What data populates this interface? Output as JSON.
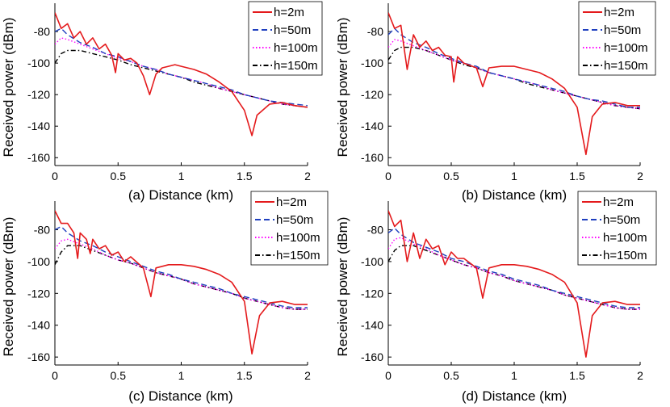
{
  "chart_data": [
    {
      "type": "line",
      "xlabel": "(a) Distance (km)",
      "ylabel": "Received power (dBm)",
      "xlim": [
        0,
        2
      ],
      "ylim": [
        -165,
        -62
      ],
      "xticks": [
        "0",
        "0.5",
        "1",
        "1.5",
        "2"
      ],
      "yticks": [
        "-80",
        "-100",
        "-120",
        "-140",
        "-160"
      ],
      "grid": false,
      "legend_position": "top-right",
      "series": [
        {
          "name": "h=2m",
          "color": "#e41a1c",
          "style": "solid",
          "x": [
            0,
            0.05,
            0.1,
            0.15,
            0.2,
            0.25,
            0.3,
            0.35,
            0.4,
            0.45,
            0.48,
            0.5,
            0.55,
            0.6,
            0.65,
            0.7,
            0.75,
            0.8,
            0.85,
            0.9,
            0.95,
            1.0,
            1.1,
            1.2,
            1.3,
            1.4,
            1.5,
            1.56,
            1.6,
            1.7,
            1.8,
            1.9,
            2.0
          ],
          "y": [
            -68,
            -78,
            -75,
            -84,
            -80,
            -88,
            -84,
            -91,
            -88,
            -95,
            -106,
            -94,
            -98,
            -97,
            -100,
            -108,
            -120,
            -107,
            -103,
            -102,
            -101,
            -102,
            -104,
            -107,
            -112,
            -118,
            -130,
            -146,
            -133,
            -126,
            -125,
            -127,
            -128
          ]
        },
        {
          "name": "h=50m",
          "color": "#1f3fbf",
          "style": "dashed",
          "x": [
            0,
            0.05,
            0.1,
            0.2,
            0.3,
            0.4,
            0.5,
            0.6,
            0.7,
            0.8,
            0.9,
            1.0,
            1.1,
            1.2,
            1.3,
            1.4,
            1.5,
            1.6,
            1.7,
            1.8,
            1.9,
            2.0
          ],
          "y": [
            -80,
            -78,
            -82,
            -87,
            -90,
            -94,
            -96,
            -99,
            -102,
            -104,
            -107,
            -109,
            -111,
            -113,
            -115,
            -117,
            -120,
            -122,
            -124,
            -125,
            -126,
            -127
          ]
        },
        {
          "name": "h=100m",
          "color": "#ff00ff",
          "style": "dotted",
          "x": [
            0,
            0.05,
            0.1,
            0.2,
            0.3,
            0.4,
            0.5,
            0.6,
            0.7,
            0.8,
            0.9,
            1.0,
            1.1,
            1.2,
            1.3,
            1.4,
            1.5,
            1.6,
            1.7,
            1.8,
            1.9,
            2.0
          ],
          "y": [
            -88,
            -84,
            -85,
            -88,
            -91,
            -94,
            -97,
            -99,
            -102,
            -104,
            -107,
            -109,
            -111,
            -113,
            -116,
            -118,
            -120,
            -122,
            -124,
            -126,
            -127,
            -128
          ]
        },
        {
          "name": "h=150m",
          "color": "#000000",
          "style": "dashdot",
          "x": [
            0,
            0.05,
            0.1,
            0.2,
            0.3,
            0.4,
            0.5,
            0.6,
            0.7,
            0.8,
            0.9,
            1.0,
            1.1,
            1.2,
            1.3,
            1.4,
            1.5,
            1.6,
            1.7,
            1.8,
            1.9,
            2.0
          ],
          "y": [
            -100,
            -94,
            -92,
            -92,
            -94,
            -96,
            -98,
            -101,
            -103,
            -105,
            -107,
            -109,
            -112,
            -114,
            -116,
            -118,
            -120,
            -122,
            -124,
            -126,
            -127,
            -128
          ]
        }
      ]
    },
    {
      "type": "line",
      "xlabel": "(b) Distance (km)",
      "ylabel": "Received power (dBm)",
      "xlim": [
        0,
        2
      ],
      "ylim": [
        -165,
        -62
      ],
      "xticks": [
        "0",
        "0.5",
        "1",
        "1.5",
        "2"
      ],
      "yticks": [
        "-80",
        "-100",
        "-120",
        "-140",
        "-160"
      ],
      "grid": false,
      "legend_position": "top-right",
      "series": [
        {
          "name": "h=2m",
          "color": "#e41a1c",
          "style": "solid",
          "x": [
            0,
            0.05,
            0.1,
            0.15,
            0.2,
            0.25,
            0.3,
            0.35,
            0.4,
            0.45,
            0.5,
            0.52,
            0.55,
            0.6,
            0.7,
            0.75,
            0.8,
            0.9,
            1.0,
            1.1,
            1.2,
            1.3,
            1.4,
            1.5,
            1.57,
            1.62,
            1.7,
            1.8,
            1.9,
            2.0
          ],
          "y": [
            -68,
            -78,
            -76,
            -104,
            -82,
            -90,
            -86,
            -92,
            -90,
            -95,
            -96,
            -112,
            -96,
            -100,
            -103,
            -115,
            -103,
            -102,
            -102,
            -104,
            -106,
            -110,
            -116,
            -128,
            -158,
            -134,
            -126,
            -125,
            -127,
            -127
          ]
        },
        {
          "name": "h=50m",
          "color": "#1f3fbf",
          "style": "dashed",
          "x": [
            0,
            0.05,
            0.1,
            0.2,
            0.3,
            0.4,
            0.5,
            0.6,
            0.7,
            0.8,
            0.9,
            1.0,
            1.1,
            1.2,
            1.3,
            1.4,
            1.5,
            1.6,
            1.7,
            1.8,
            1.9,
            2.0
          ],
          "y": [
            -82,
            -78,
            -82,
            -87,
            -90,
            -94,
            -97,
            -100,
            -102,
            -106,
            -108,
            -110,
            -112,
            -114,
            -116,
            -118,
            -121,
            -123,
            -124,
            -126,
            -128,
            -128
          ]
        },
        {
          "name": "h=100m",
          "color": "#ff00ff",
          "style": "dotted",
          "x": [
            0,
            0.05,
            0.1,
            0.2,
            0.3,
            0.4,
            0.5,
            0.6,
            0.7,
            0.8,
            0.9,
            1.0,
            1.1,
            1.2,
            1.3,
            1.4,
            1.5,
            1.6,
            1.7,
            1.8,
            1.9,
            2.0
          ],
          "y": [
            -90,
            -85,
            -86,
            -89,
            -92,
            -95,
            -98,
            -100,
            -103,
            -106,
            -108,
            -110,
            -112,
            -114,
            -117,
            -119,
            -121,
            -123,
            -125,
            -127,
            -128,
            -129
          ]
        },
        {
          "name": "h=150m",
          "color": "#000000",
          "style": "dashdot",
          "x": [
            0,
            0.05,
            0.1,
            0.2,
            0.3,
            0.4,
            0.5,
            0.6,
            0.7,
            0.8,
            0.9,
            1.0,
            1.1,
            1.2,
            1.3,
            1.4,
            1.5,
            1.6,
            1.7,
            1.8,
            1.9,
            2.0
          ],
          "y": [
            -98,
            -92,
            -90,
            -90,
            -92,
            -95,
            -98,
            -101,
            -103,
            -106,
            -108,
            -110,
            -113,
            -115,
            -117,
            -119,
            -121,
            -123,
            -125,
            -127,
            -128,
            -129
          ]
        }
      ]
    },
    {
      "type": "line",
      "xlabel": "(c) Distance (km)",
      "ylabel": "Received power (dBm)",
      "xlim": [
        0,
        2
      ],
      "ylim": [
        -165,
        -62
      ],
      "xticks": [
        "0",
        "0.5",
        "1",
        "1.5",
        "2"
      ],
      "yticks": [
        "-80",
        "-100",
        "-120",
        "-140",
        "-160"
      ],
      "grid": false,
      "legend_position": "top-right",
      "series": [
        {
          "name": "h=2m",
          "color": "#e41a1c",
          "style": "solid",
          "x": [
            0,
            0.05,
            0.1,
            0.15,
            0.18,
            0.2,
            0.25,
            0.28,
            0.3,
            0.35,
            0.4,
            0.45,
            0.5,
            0.55,
            0.6,
            0.7,
            0.76,
            0.8,
            0.9,
            1.0,
            1.1,
            1.2,
            1.3,
            1.4,
            1.5,
            1.56,
            1.62,
            1.7,
            1.8,
            1.9,
            2.0
          ],
          "y": [
            -68,
            -76,
            -76,
            -82,
            -98,
            -82,
            -86,
            -95,
            -86,
            -92,
            -90,
            -96,
            -94,
            -100,
            -97,
            -104,
            -122,
            -104,
            -102,
            -102,
            -103,
            -105,
            -108,
            -113,
            -125,
            -158,
            -134,
            -126,
            -125,
            -127,
            -127
          ]
        },
        {
          "name": "h=50m",
          "color": "#1f3fbf",
          "style": "dashed",
          "x": [
            0,
            0.05,
            0.1,
            0.2,
            0.3,
            0.4,
            0.5,
            0.6,
            0.7,
            0.8,
            0.9,
            1.0,
            1.1,
            1.2,
            1.3,
            1.4,
            1.5,
            1.6,
            1.7,
            1.8,
            1.9,
            2.0
          ],
          "y": [
            -80,
            -78,
            -82,
            -87,
            -90,
            -94,
            -97,
            -100,
            -103,
            -106,
            -108,
            -111,
            -113,
            -115,
            -117,
            -120,
            -122,
            -124,
            -126,
            -128,
            -129,
            -129
          ]
        },
        {
          "name": "h=100m",
          "color": "#ff00ff",
          "style": "dotted",
          "x": [
            0,
            0.05,
            0.1,
            0.2,
            0.3,
            0.4,
            0.5,
            0.6,
            0.7,
            0.8,
            0.9,
            1.0,
            1.1,
            1.2,
            1.3,
            1.4,
            1.5,
            1.6,
            1.7,
            1.8,
            1.9,
            2.0
          ],
          "y": [
            -92,
            -87,
            -86,
            -89,
            -92,
            -96,
            -99,
            -101,
            -104,
            -107,
            -109,
            -111,
            -114,
            -116,
            -118,
            -120,
            -123,
            -125,
            -127,
            -129,
            -130,
            -130
          ]
        },
        {
          "name": "h=150m",
          "color": "#000000",
          "style": "dashdot",
          "x": [
            0,
            0.05,
            0.1,
            0.2,
            0.3,
            0.4,
            0.5,
            0.6,
            0.7,
            0.8,
            0.9,
            1.0,
            1.1,
            1.2,
            1.3,
            1.4,
            1.5,
            1.6,
            1.7,
            1.8,
            1.9,
            2.0
          ],
          "y": [
            -102,
            -94,
            -90,
            -90,
            -93,
            -96,
            -99,
            -101,
            -104,
            -107,
            -109,
            -111,
            -114,
            -116,
            -118,
            -120,
            -123,
            -125,
            -127,
            -129,
            -130,
            -130
          ]
        }
      ]
    },
    {
      "type": "line",
      "xlabel": "(d) Distance (km)",
      "ylabel": "Received power (dBm)",
      "xlim": [
        0,
        2
      ],
      "ylim": [
        -165,
        -62
      ],
      "xticks": [
        "0",
        "0.5",
        "1",
        "1.5",
        "2"
      ],
      "yticks": [
        "-80",
        "-100",
        "-120",
        "-140",
        "-160"
      ],
      "grid": false,
      "legend_position": "top-right",
      "series": [
        {
          "name": "h=2m",
          "color": "#e41a1c",
          "style": "solid",
          "x": [
            0,
            0.05,
            0.1,
            0.15,
            0.2,
            0.25,
            0.3,
            0.35,
            0.4,
            0.45,
            0.5,
            0.55,
            0.6,
            0.7,
            0.75,
            0.8,
            0.9,
            1.0,
            1.1,
            1.2,
            1.3,
            1.4,
            1.5,
            1.57,
            1.62,
            1.7,
            1.8,
            1.9,
            2.0
          ],
          "y": [
            -68,
            -78,
            -74,
            -100,
            -82,
            -98,
            -86,
            -92,
            -90,
            -102,
            -94,
            -98,
            -98,
            -104,
            -123,
            -104,
            -102,
            -102,
            -103,
            -105,
            -108,
            -113,
            -126,
            -160,
            -134,
            -126,
            -125,
            -127,
            -127
          ]
        },
        {
          "name": "h=50m",
          "color": "#1f3fbf",
          "style": "dashed",
          "x": [
            0,
            0.05,
            0.1,
            0.2,
            0.3,
            0.4,
            0.5,
            0.6,
            0.7,
            0.8,
            0.9,
            1.0,
            1.1,
            1.2,
            1.3,
            1.4,
            1.5,
            1.6,
            1.7,
            1.8,
            1.9,
            2.0
          ],
          "y": [
            -82,
            -79,
            -83,
            -88,
            -91,
            -94,
            -98,
            -100,
            -103,
            -106,
            -108,
            -111,
            -113,
            -115,
            -118,
            -120,
            -122,
            -124,
            -126,
            -128,
            -129,
            -129
          ]
        },
        {
          "name": "h=100m",
          "color": "#ff00ff",
          "style": "dotted",
          "x": [
            0,
            0.05,
            0.1,
            0.2,
            0.3,
            0.4,
            0.5,
            0.6,
            0.7,
            0.8,
            0.9,
            1.0,
            1.1,
            1.2,
            1.3,
            1.4,
            1.5,
            1.6,
            1.7,
            1.8,
            1.9,
            2.0
          ],
          "y": [
            -92,
            -86,
            -85,
            -89,
            -92,
            -96,
            -99,
            -102,
            -104,
            -107,
            -109,
            -112,
            -114,
            -116,
            -118,
            -121,
            -123,
            -125,
            -127,
            -129,
            -130,
            -130
          ]
        },
        {
          "name": "h=150m",
          "color": "#000000",
          "style": "dashdot",
          "x": [
            0,
            0.05,
            0.1,
            0.2,
            0.3,
            0.4,
            0.5,
            0.6,
            0.7,
            0.8,
            0.9,
            1.0,
            1.1,
            1.2,
            1.3,
            1.4,
            1.5,
            1.6,
            1.7,
            1.8,
            1.9,
            2.0
          ],
          "y": [
            -100,
            -93,
            -90,
            -90,
            -93,
            -96,
            -99,
            -102,
            -104,
            -107,
            -109,
            -112,
            -114,
            -116,
            -118,
            -121,
            -123,
            -125,
            -127,
            -129,
            -130,
            -130
          ]
        }
      ]
    }
  ]
}
